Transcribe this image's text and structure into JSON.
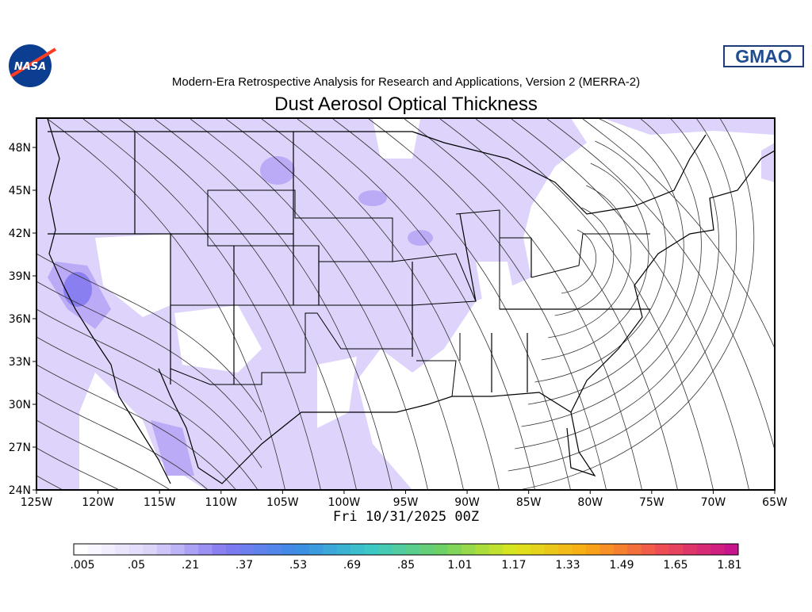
{
  "header": {
    "logo_left": "NASA",
    "logo_right": "GMAO",
    "subtitle": "Modern-Era Retrospective Analysis for Research and Applications, Version 2 (MERRA-2)",
    "title": "Dust Aerosol Optical Thickness"
  },
  "map": {
    "lat_labels": [
      "48N",
      "45N",
      "42N",
      "39N",
      "36N",
      "33N",
      "30N",
      "27N",
      "24N"
    ],
    "lon_labels": [
      "125W",
      "120W",
      "115W",
      "110W",
      "105W",
      "100W",
      "95W",
      "90W",
      "85W",
      "80W",
      "75W",
      "70W",
      "65W"
    ],
    "valid_time": "Fri 10/31/2025 00Z"
  },
  "colorbar": {
    "labels": [
      ".005",
      ".05",
      ".21",
      ".37",
      ".53",
      ".69",
      ".85",
      "1.01",
      "1.17",
      "1.33",
      "1.49",
      "1.65",
      "1.81"
    ]
  }
}
